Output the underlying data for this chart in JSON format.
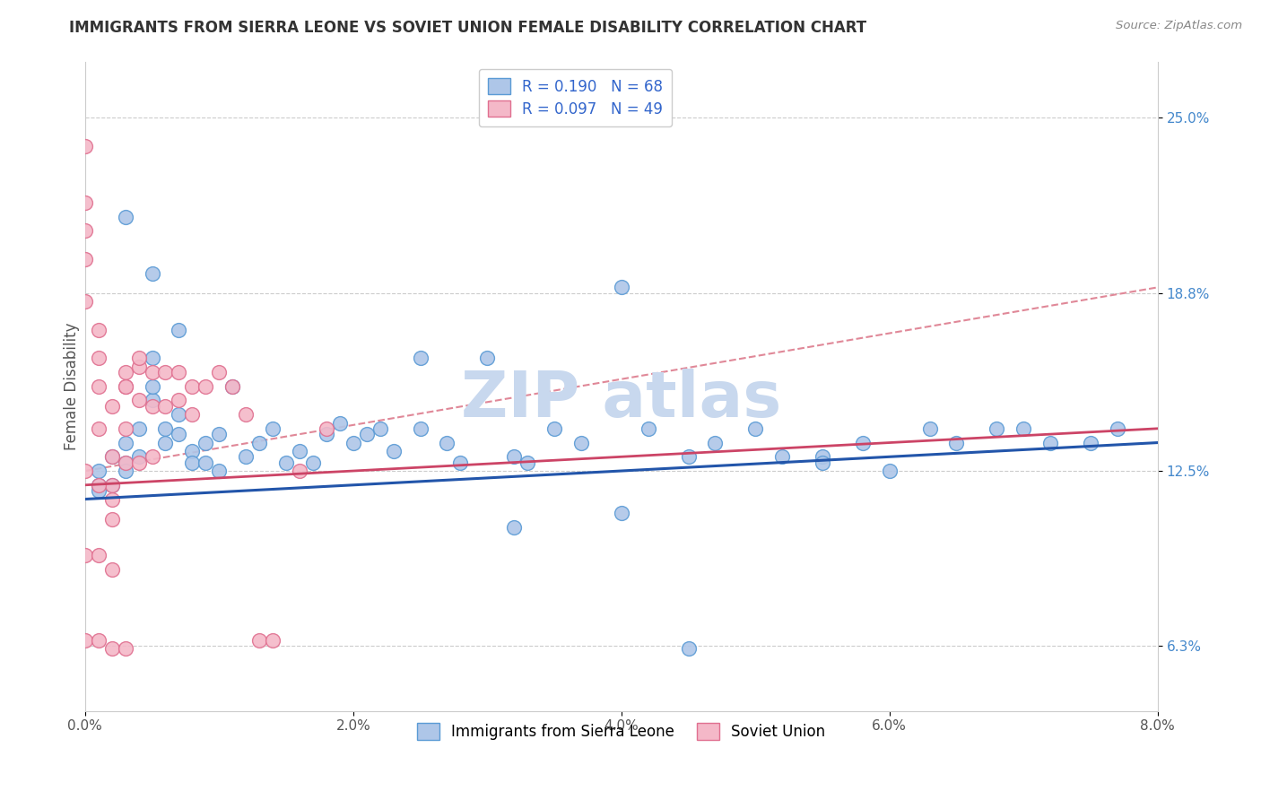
{
  "title": "IMMIGRANTS FROM SIERRA LEONE VS SOVIET UNION FEMALE DISABILITY CORRELATION CHART",
  "source": "Source: ZipAtlas.com",
  "xlabel": "",
  "ylabel": "Female Disability",
  "xlim": [
    0.0,
    0.08
  ],
  "ylim": [
    0.04,
    0.27
  ],
  "x_ticks": [
    0.0,
    0.02,
    0.04,
    0.06,
    0.08
  ],
  "x_tick_labels": [
    "0.0%",
    "2.0%",
    "4.0%",
    "6.0%",
    "8.0%"
  ],
  "y_ticks": [
    0.063,
    0.125,
    0.188,
    0.25
  ],
  "y_tick_labels": [
    "6.3%",
    "12.5%",
    "18.8%",
    "25.0%"
  ],
  "sierra_leone_R": 0.19,
  "sierra_leone_N": 68,
  "soviet_union_R": 0.097,
  "soviet_union_N": 49,
  "sierra_leone_color": "#aec6e8",
  "sierra_leone_edge": "#5b9bd5",
  "soviet_union_color": "#f4b8c8",
  "soviet_union_edge": "#e07090",
  "sierra_leone_line_color": "#2255aa",
  "soviet_union_line_color": "#cc4466",
  "dashed_line_color": "#e08898",
  "background_color": "#ffffff",
  "grid_color": "#cccccc",
  "watermark_color": "#c8d8ee",
  "sl_x": [
    0.001,
    0.001,
    0.001,
    0.002,
    0.002,
    0.003,
    0.003,
    0.003,
    0.004,
    0.004,
    0.005,
    0.005,
    0.005,
    0.006,
    0.006,
    0.007,
    0.007,
    0.008,
    0.008,
    0.009,
    0.009,
    0.01,
    0.01,
    0.011,
    0.012,
    0.013,
    0.014,
    0.015,
    0.016,
    0.017,
    0.018,
    0.019,
    0.02,
    0.021,
    0.022,
    0.023,
    0.025,
    0.027,
    0.028,
    0.03,
    0.032,
    0.033,
    0.035,
    0.037,
    0.04,
    0.042,
    0.045,
    0.047,
    0.05,
    0.052,
    0.055,
    0.058,
    0.06,
    0.063,
    0.065,
    0.068,
    0.07,
    0.072,
    0.075,
    0.077,
    0.003,
    0.005,
    0.007,
    0.025,
    0.045,
    0.032,
    0.055,
    0.04
  ],
  "sl_y": [
    0.125,
    0.12,
    0.118,
    0.13,
    0.12,
    0.128,
    0.135,
    0.125,
    0.14,
    0.13,
    0.15,
    0.165,
    0.155,
    0.14,
    0.135,
    0.145,
    0.138,
    0.132,
    0.128,
    0.135,
    0.128,
    0.125,
    0.138,
    0.155,
    0.13,
    0.135,
    0.14,
    0.128,
    0.132,
    0.128,
    0.138,
    0.142,
    0.135,
    0.138,
    0.14,
    0.132,
    0.14,
    0.135,
    0.128,
    0.165,
    0.13,
    0.128,
    0.14,
    0.135,
    0.19,
    0.14,
    0.13,
    0.135,
    0.14,
    0.13,
    0.13,
    0.135,
    0.125,
    0.14,
    0.135,
    0.14,
    0.14,
    0.135,
    0.135,
    0.14,
    0.215,
    0.195,
    0.175,
    0.165,
    0.062,
    0.105,
    0.128,
    0.11
  ],
  "su_x": [
    0.0,
    0.0,
    0.0,
    0.0,
    0.0,
    0.001,
    0.001,
    0.001,
    0.001,
    0.002,
    0.002,
    0.002,
    0.003,
    0.003,
    0.003,
    0.004,
    0.004,
    0.005,
    0.005,
    0.006,
    0.006,
    0.007,
    0.007,
    0.008,
    0.008,
    0.009,
    0.01,
    0.011,
    0.012,
    0.013,
    0.014,
    0.016,
    0.018,
    0.002,
    0.003,
    0.004,
    0.0,
    0.001,
    0.002,
    0.0,
    0.001,
    0.002,
    0.003,
    0.004,
    0.005,
    0.0,
    0.001,
    0.002,
    0.003
  ],
  "su_y": [
    0.24,
    0.22,
    0.21,
    0.2,
    0.185,
    0.175,
    0.165,
    0.155,
    0.14,
    0.13,
    0.12,
    0.108,
    0.16,
    0.155,
    0.14,
    0.162,
    0.15,
    0.16,
    0.148,
    0.16,
    0.148,
    0.16,
    0.15,
    0.155,
    0.145,
    0.155,
    0.16,
    0.155,
    0.145,
    0.065,
    0.065,
    0.125,
    0.14,
    0.148,
    0.155,
    0.165,
    0.095,
    0.095,
    0.09,
    0.125,
    0.12,
    0.115,
    0.128,
    0.128,
    0.13,
    0.065,
    0.065,
    0.062,
    0.062
  ]
}
